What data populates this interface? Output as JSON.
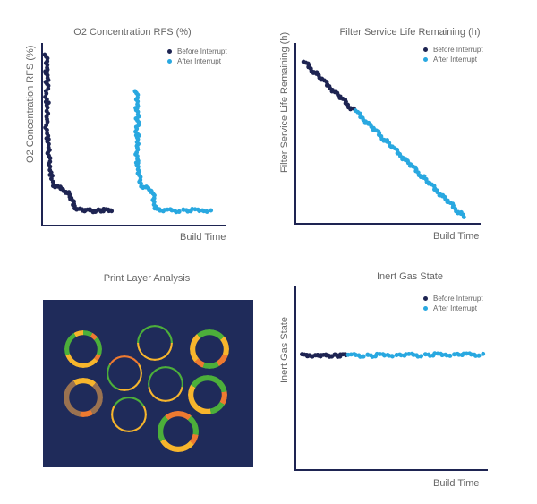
{
  "colors": {
    "before": "#1e2452",
    "after": "#29a8e0",
    "axis": "#1e2452",
    "layer_background": "#1f2b5a"
  },
  "chart_data": [
    {
      "type": "scatter",
      "title": "O2 Concentration RFS (%)",
      "xlabel": "Build Time",
      "ylabel": "O2 Concentration RFS (%)",
      "xlim": [
        0,
        100
      ],
      "ylim": [
        0,
        100
      ],
      "grid": false,
      "legend": "top-right",
      "series": [
        {
          "name": "Before Interrupt",
          "points": [
            [
              2,
              93
            ],
            [
              2.5,
              90
            ],
            [
              3,
              87
            ],
            [
              2,
              84
            ],
            [
              3,
              81
            ],
            [
              2.5,
              78
            ],
            [
              3,
              75
            ],
            [
              2,
              71
            ],
            [
              3,
              67
            ],
            [
              2.5,
              63
            ],
            [
              3,
              59
            ],
            [
              2,
              55
            ],
            [
              3,
              51
            ],
            [
              3,
              47
            ],
            [
              3.5,
              43
            ],
            [
              3.5,
              39
            ],
            [
              4,
              35
            ],
            [
              4.5,
              31
            ],
            [
              5,
              27
            ],
            [
              6,
              22
            ],
            [
              8,
              21
            ],
            [
              10,
              20.5
            ],
            [
              12,
              19.5
            ],
            [
              14,
              18
            ],
            [
              15,
              16
            ],
            [
              16,
              14
            ],
            [
              17,
              12
            ],
            [
              18,
              10
            ],
            [
              20,
              9
            ],
            [
              22,
              8.5
            ],
            [
              24,
              8
            ],
            [
              26,
              8.5
            ],
            [
              28,
              8
            ],
            [
              30,
              8.5
            ],
            [
              32,
              8
            ],
            [
              34,
              8.5
            ],
            [
              36,
              8
            ],
            [
              38,
              8.5
            ]
          ]
        },
        {
          "name": "After Interrupt",
          "points": [
            [
              51,
              73
            ],
            [
              51.5,
              70
            ],
            [
              52,
              67
            ],
            [
              51,
              64
            ],
            [
              52,
              61
            ],
            [
              51.5,
              58
            ],
            [
              52,
              55
            ],
            [
              51,
              52
            ],
            [
              52,
              49
            ],
            [
              51.5,
              46
            ],
            [
              52,
              43
            ],
            [
              51,
              40
            ],
            [
              52,
              37
            ],
            [
              51.5,
              34
            ],
            [
              52,
              31
            ],
            [
              52.5,
              28
            ],
            [
              53,
              25
            ],
            [
              54,
              22
            ],
            [
              56,
              21
            ],
            [
              58,
              20
            ],
            [
              60,
              18
            ],
            [
              60.5,
              15
            ],
            [
              61,
              12
            ],
            [
              62,
              9
            ],
            [
              64,
              8.5
            ],
            [
              67,
              8
            ],
            [
              70,
              8.5
            ],
            [
              73,
              8
            ],
            [
              76,
              8.5
            ],
            [
              79,
              8
            ],
            [
              82,
              8.5
            ],
            [
              85,
              8
            ],
            [
              88,
              8.5
            ],
            [
              91,
              8
            ]
          ]
        }
      ]
    },
    {
      "type": "scatter",
      "title": "Filter Service Life Remaining (h)",
      "xlabel": "Build Time",
      "ylabel": "Filter Service Life Remaining (h)",
      "xlim": [
        0,
        100
      ],
      "ylim": [
        0,
        100
      ],
      "grid": false,
      "legend": "top-right",
      "series": [
        {
          "name": "Before Interrupt",
          "points": [
            [
              5,
              89
            ],
            [
              7,
              87.5
            ],
            [
              9,
              85
            ],
            [
              11,
              83.5
            ],
            [
              13,
              81
            ],
            [
              15,
              79.5
            ],
            [
              17,
              77
            ],
            [
              19,
              75.5
            ],
            [
              21,
              73
            ],
            [
              23,
              71.5
            ],
            [
              25,
              69
            ],
            [
              27,
              67.5
            ],
            [
              29,
              65
            ],
            [
              31,
              63.5
            ]
          ]
        },
        {
          "name": "After Interrupt",
          "points": [
            [
              33,
              62
            ],
            [
              35,
              59.5
            ],
            [
              37,
              58
            ],
            [
              39,
              55.5
            ],
            [
              41,
              54
            ],
            [
              43,
              51.5
            ],
            [
              45,
              50
            ],
            [
              47,
              47.5
            ],
            [
              49,
              46
            ],
            [
              51,
              43.5
            ],
            [
              53,
              42
            ],
            [
              55,
              39.5
            ],
            [
              57,
              38
            ],
            [
              59,
              35.5
            ],
            [
              61,
              34
            ],
            [
              63,
              31.5
            ],
            [
              65,
              30
            ],
            [
              67,
              27.5
            ],
            [
              69,
              26
            ],
            [
              71,
              23.5
            ],
            [
              73,
              22
            ],
            [
              75,
              19.5
            ],
            [
              77,
              18
            ],
            [
              79,
              15.5
            ],
            [
              81,
              14
            ],
            [
              83,
              11.5
            ],
            [
              85,
              10
            ],
            [
              87,
              7.5
            ],
            [
              89,
              6
            ],
            [
              91,
              4
            ]
          ]
        }
      ]
    },
    {
      "type": "heatmap",
      "title": "Print Layer Analysis"
    },
    {
      "type": "scatter",
      "title": "Inert Gas State",
      "xlabel": "Build Time",
      "ylabel": "Inert Gas State",
      "xlim": [
        0,
        100
      ],
      "ylim": [
        0,
        100
      ],
      "grid": false,
      "legend": "top-right",
      "series": [
        {
          "name": "Before Interrupt",
          "points": [
            [
              4,
              62.5
            ],
            [
              6,
              62
            ],
            [
              8,
              62.8
            ],
            [
              10,
              62.2
            ],
            [
              12,
              62.6
            ],
            [
              14,
              62
            ],
            [
              16,
              62.5
            ],
            [
              18,
              62.3
            ],
            [
              20,
              62.7
            ],
            [
              22,
              62
            ],
            [
              24,
              62.4
            ],
            [
              26,
              62.6
            ]
          ]
        },
        {
          "name": "After Interrupt",
          "points": [
            [
              28,
              62.2
            ],
            [
              31,
              62.8
            ],
            [
              34,
              62.3
            ],
            [
              37,
              62.6
            ],
            [
              40,
              62
            ],
            [
              43,
              62.7
            ],
            [
              46,
              62.4
            ],
            [
              49,
              62.9
            ],
            [
              52,
              62.3
            ],
            [
              55,
              62.8
            ],
            [
              58,
              62.5
            ],
            [
              61,
              62.9
            ],
            [
              64,
              62.4
            ],
            [
              67,
              62.8
            ],
            [
              70,
              62.5
            ],
            [
              73,
              63
            ],
            [
              76,
              62.6
            ],
            [
              79,
              63
            ],
            [
              82,
              62.7
            ],
            [
              85,
              63.1
            ],
            [
              88,
              62.8
            ],
            [
              91,
              63
            ],
            [
              94,
              62.8
            ],
            [
              97,
              63
            ]
          ]
        }
      ]
    }
  ]
}
